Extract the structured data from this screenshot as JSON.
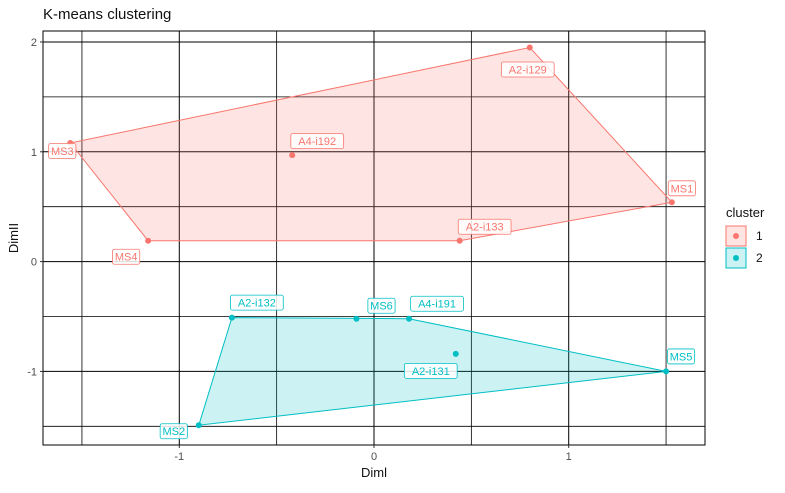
{
  "chart_data": {
    "type": "scatter",
    "title": "K-means clustering",
    "xlabel": "Diml",
    "ylabel": "DimII",
    "xlim": [
      -1.7,
      1.7
    ],
    "ylim": [
      -1.67,
      2.1
    ],
    "x_ticks": [
      -1,
      0,
      1
    ],
    "y_ticks": [
      -1,
      0,
      1,
      2
    ],
    "grid": true,
    "legend": {
      "title": "cluster",
      "position": "right",
      "entries": [
        "1",
        "2"
      ]
    },
    "series": [
      {
        "name": "1",
        "color": "#F8766D",
        "points": [
          {
            "label": "A2-i129",
            "x": 0.8,
            "y": 1.95
          },
          {
            "label": "MS3",
            "x": -1.56,
            "y": 1.08
          },
          {
            "label": "A4-i192",
            "x": -0.42,
            "y": 0.97
          },
          {
            "label": "MS1",
            "x": 1.53,
            "y": 0.54
          },
          {
            "label": "A2-i133",
            "x": 0.44,
            "y": 0.19
          },
          {
            "label": "MS4",
            "x": -1.16,
            "y": 0.19
          }
        ],
        "hull": [
          "MS3",
          "A2-i129",
          "MS1",
          "A2-i133",
          "MS4"
        ]
      },
      {
        "name": "2",
        "color": "#00BFC4",
        "points": [
          {
            "label": "A2-i132",
            "x": -0.73,
            "y": -0.51
          },
          {
            "label": "MS6",
            "x": -0.09,
            "y": -0.52
          },
          {
            "label": "A4-i191",
            "x": 0.18,
            "y": -0.52
          },
          {
            "label": "A2-i131",
            "x": 0.42,
            "y": -0.84
          },
          {
            "label": "MS5",
            "x": 1.5,
            "y": -1.0
          },
          {
            "label": "MS2",
            "x": -0.9,
            "y": -1.49
          }
        ],
        "hull": [
          "A2-i132",
          "A4-i191",
          "MS5",
          "MS2"
        ]
      }
    ]
  }
}
